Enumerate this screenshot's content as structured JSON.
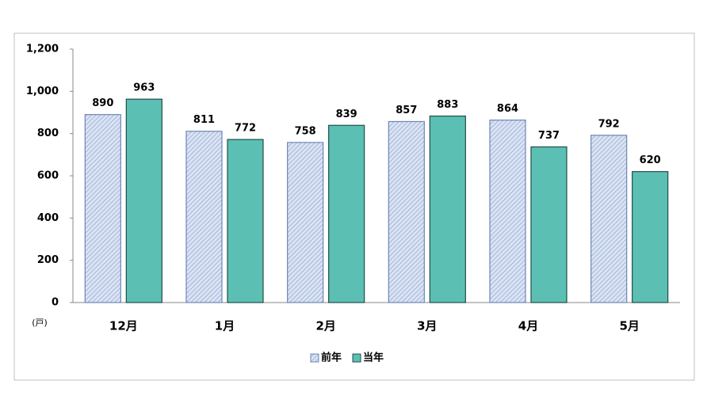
{
  "chart_data": {
    "type": "bar",
    "y_unit": "(戸)",
    "categories": [
      "12月",
      "1月",
      "2月",
      "3月",
      "4月",
      "5月"
    ],
    "series": [
      {
        "name": "前年",
        "color": "#dbe3f2",
        "hatch": true,
        "values": [
          890,
          811,
          758,
          857,
          864,
          792
        ]
      },
      {
        "name": "当年",
        "color": "#5cbfb3",
        "hatch": false,
        "values": [
          963,
          772,
          839,
          883,
          737,
          620
        ]
      }
    ],
    "ylim": [
      0,
      1200
    ],
    "yticks": [
      0,
      200,
      400,
      600,
      800,
      {
        "value": 1000,
        "label": "1,000"
      },
      {
        "value": 1200,
        "label": "1,200"
      }
    ],
    "legend": "bottom"
  }
}
